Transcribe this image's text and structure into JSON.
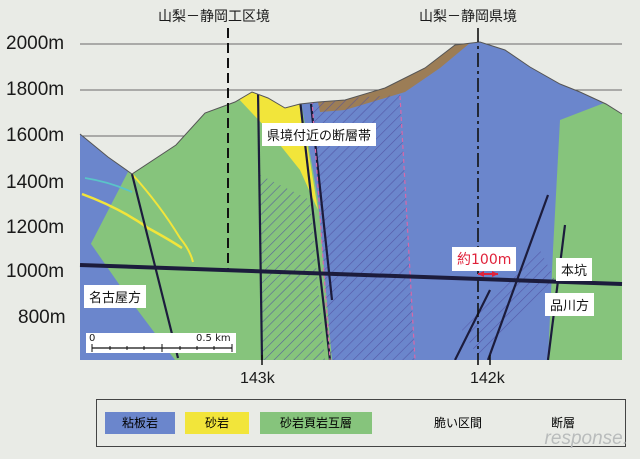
{
  "boundaries": {
    "yamanashi_shizuoka_ward": "山梨－静岡工区境",
    "yamanashi_shizuoka_pref": "山梨－静岡県境"
  },
  "elevations": [
    "2000m",
    "1800m",
    "1600m",
    "1400m",
    "1200m",
    "1000m",
    "800m"
  ],
  "chainage": [
    "143k",
    "142k"
  ],
  "annotations": {
    "fault_zone": "県境付近の断層帯",
    "distance": "約100m",
    "main_tunnel": "本坑",
    "nagoya_side": "名古屋方",
    "shinagawa_side": "品川方"
  },
  "scale": {
    "zero": "0",
    "half": "0.5 km"
  },
  "legend": {
    "slate": "粘板岩",
    "sandstone": "砂岩",
    "alternation": "砂岩頁岩互層",
    "fragile": "脆い区間",
    "fault": "断層"
  },
  "watermark": "response.",
  "colors": {
    "slate": "#6b86cc",
    "sandstone": "#f2e53a",
    "alternation": "#86c47c",
    "surface": "#9c7d56",
    "background": "#e9ebe6",
    "fragile": "#e06a9a",
    "distance_text": "#e0223a"
  }
}
